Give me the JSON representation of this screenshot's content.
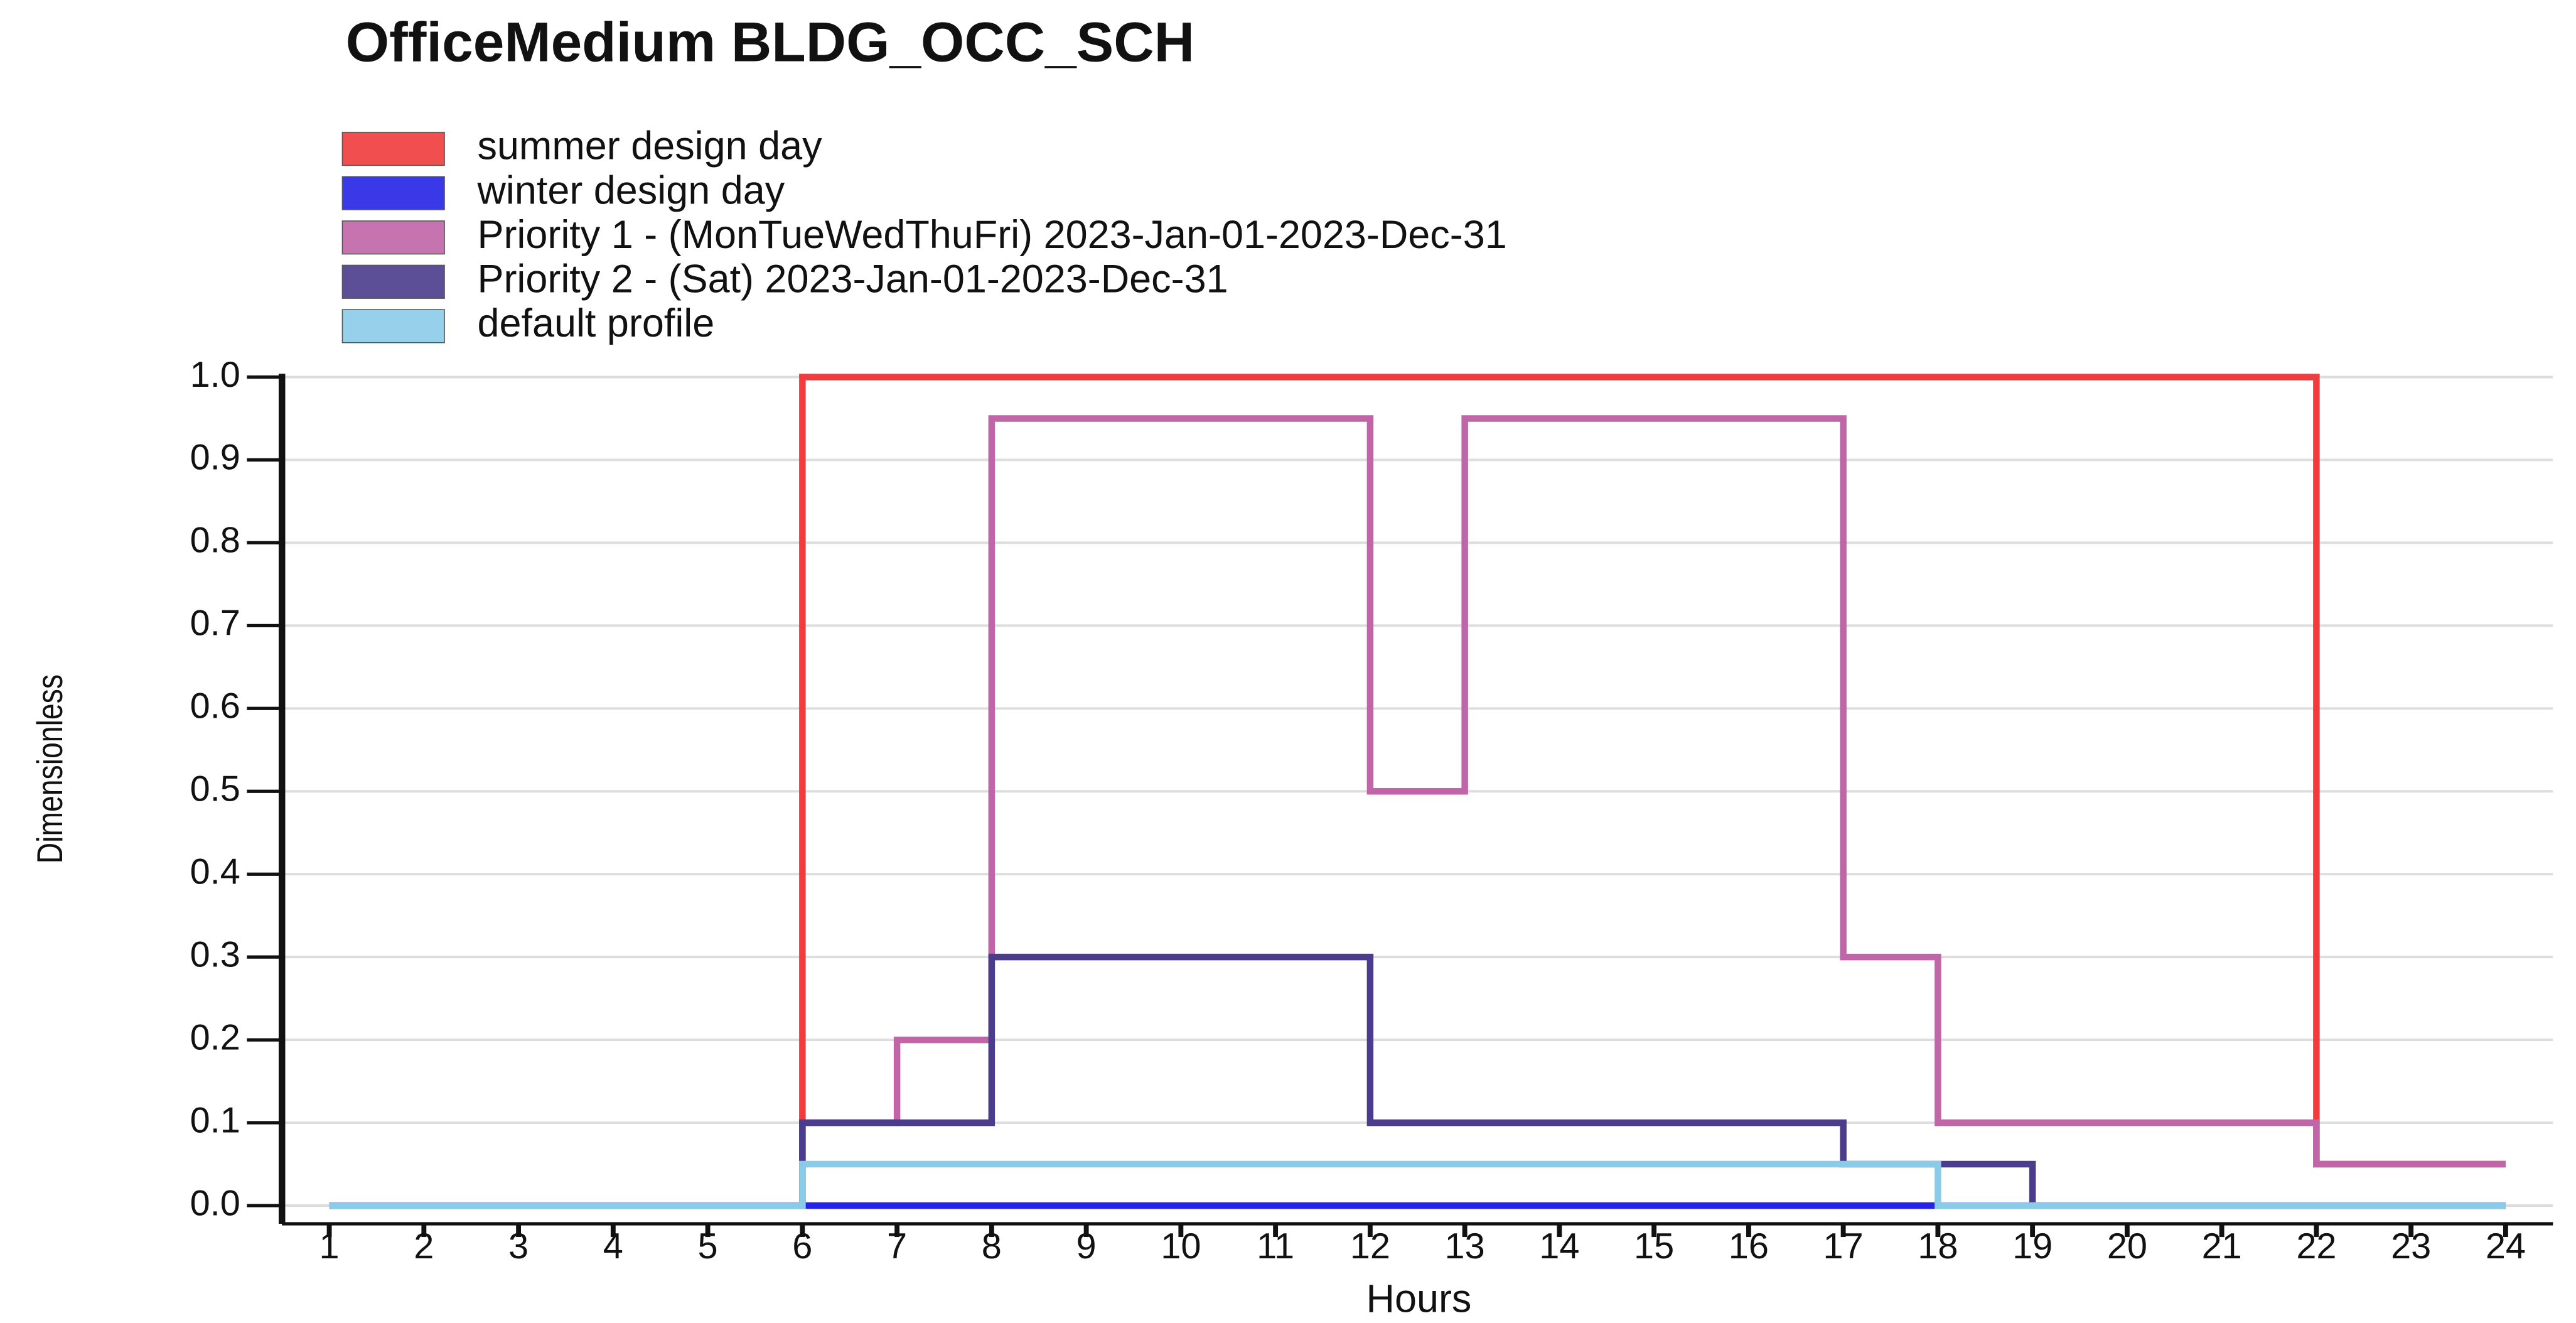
{
  "chart_data": {
    "type": "step",
    "title": "OfficeMedium BLDG_OCC_SCH",
    "x_label": "Hours",
    "y_label": "Dimensionless",
    "x": [
      1,
      2,
      3,
      4,
      5,
      6,
      7,
      8,
      9,
      10,
      11,
      12,
      13,
      14,
      15,
      16,
      17,
      18,
      19,
      20,
      21,
      22,
      23,
      24
    ],
    "series": [
      {
        "name": "summer design day",
        "color": "#f03c3c",
        "values": [
          0,
          0,
          0,
          0,
          0,
          1,
          1,
          1,
          1,
          1,
          1,
          1,
          1,
          1,
          1,
          1,
          1,
          1,
          1,
          1,
          1,
          0.05,
          0.05,
          0.05
        ]
      },
      {
        "name": "winter design day",
        "color": "#2424e6",
        "values": [
          0,
          0,
          0,
          0,
          0,
          0,
          0,
          0,
          0,
          0,
          0,
          0,
          0,
          0,
          0,
          0,
          0,
          0,
          0,
          0,
          0,
          0,
          0,
          0
        ]
      },
      {
        "name": "Priority 1 - (MonTueWedThuFri) 2023-Jan-01-2023-Dec-31",
        "color": "#c066a8",
        "values": [
          0,
          0,
          0,
          0,
          0,
          0.1,
          0.2,
          0.95,
          0.95,
          0.95,
          0.95,
          0.5,
          0.95,
          0.95,
          0.95,
          0.95,
          0.3,
          0.1,
          0.1,
          0.1,
          0.1,
          0.05,
          0.05,
          0.05
        ]
      },
      {
        "name": "Priority 2 - (Sat) 2023-Jan-01-2023-Dec-31",
        "color": "#4b3c8c",
        "values": [
          0,
          0,
          0,
          0,
          0,
          0.1,
          0.1,
          0.3,
          0.3,
          0.3,
          0.3,
          0.1,
          0.1,
          0.1,
          0.1,
          0.1,
          0.05,
          0.05,
          0,
          0,
          0,
          0,
          0,
          0
        ]
      },
      {
        "name": "default profile",
        "color": "#8ccbe8",
        "values": [
          0,
          0,
          0,
          0,
          0,
          0.05,
          0.05,
          0.05,
          0.05,
          0.05,
          0.05,
          0.05,
          0.05,
          0.05,
          0.05,
          0.05,
          0.05,
          0,
          0,
          0,
          0,
          0,
          0,
          0
        ]
      }
    ],
    "xlim": [
      0.5,
      24.5
    ],
    "xticks": [
      1,
      2,
      3,
      4,
      5,
      6,
      7,
      8,
      9,
      10,
      11,
      12,
      13,
      14,
      15,
      16,
      17,
      18,
      19,
      20,
      21,
      22,
      23,
      24
    ],
    "ylim": [
      0,
      1
    ],
    "yticks": [
      {
        "value": 0,
        "label": "0.0"
      },
      0.1,
      0.2,
      0.3,
      0.4,
      0.5,
      0.6,
      0.7,
      0.8,
      0.9,
      {
        "value": 1,
        "label": "1.0"
      }
    ],
    "grid": true
  }
}
